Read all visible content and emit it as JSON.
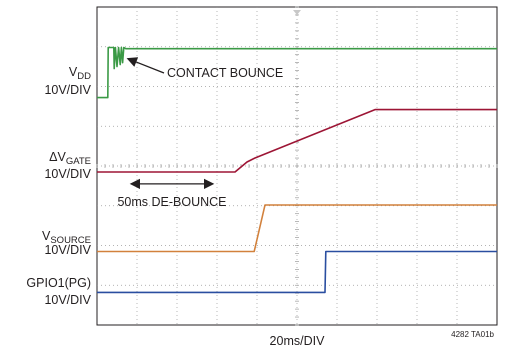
{
  "chart_data": {
    "type": "line",
    "title": "",
    "xlabel": "20ms/DIV",
    "figure_id": "4282 TA01b",
    "grid": true,
    "x_divisions": 10,
    "y_divisions": 8,
    "x_unit_per_div_ms": 20,
    "x_range_div": [
      0,
      10
    ],
    "y_range_div": [
      0,
      8
    ],
    "channels": [
      {
        "name_main": "V",
        "name_sub": "DD",
        "scale": "10V/DIV",
        "color": "#3b9a46",
        "points": [
          [
            0.0,
            5.72
          ],
          [
            0.27,
            5.72
          ],
          [
            0.28,
            6.98
          ],
          [
            0.42,
            6.98
          ],
          [
            0.43,
            6.45
          ],
          [
            0.46,
            6.98
          ],
          [
            0.5,
            6.5
          ],
          [
            0.54,
            6.98
          ],
          [
            0.58,
            6.55
          ],
          [
            0.61,
            6.98
          ],
          [
            0.64,
            6.6
          ],
          [
            0.67,
            6.98
          ],
          [
            0.72,
            6.95
          ],
          [
            10.0,
            6.95
          ]
        ]
      },
      {
        "name_main": "ΔV",
        "name_sub": "GATE",
        "scale": "10V/DIV",
        "color": "#9d1535",
        "points": [
          [
            0.0,
            3.85
          ],
          [
            3.45,
            3.85
          ],
          [
            3.75,
            4.1
          ],
          [
            3.95,
            4.2
          ],
          [
            6.95,
            5.42
          ],
          [
            10.0,
            5.42
          ]
        ]
      },
      {
        "name_main": "V",
        "name_sub": "SOURCE",
        "scale": "10V/DIV",
        "color": "#d2813c",
        "points": [
          [
            0.0,
            1.85
          ],
          [
            3.93,
            1.85
          ],
          [
            4.2,
            3.02
          ],
          [
            4.28,
            3.02
          ],
          [
            10.0,
            3.02
          ]
        ]
      },
      {
        "name_main": "GPIO1(PG)",
        "name_sub": "",
        "scale": "10V/DIV",
        "color": "#2a4ea0",
        "points": [
          [
            0.0,
            0.82
          ],
          [
            5.7,
            0.82
          ],
          [
            5.72,
            1.85
          ],
          [
            10.0,
            1.85
          ]
        ]
      }
    ],
    "annotations": [
      {
        "text": "CONTACT BOUNCE",
        "arrow": "left",
        "target": [
          0.62,
          6.75
        ]
      },
      {
        "text": "50ms DE-BOUNCE",
        "arrow": "both",
        "from": 0.85,
        "to": 2.9,
        "y": 3.55
      }
    ]
  }
}
